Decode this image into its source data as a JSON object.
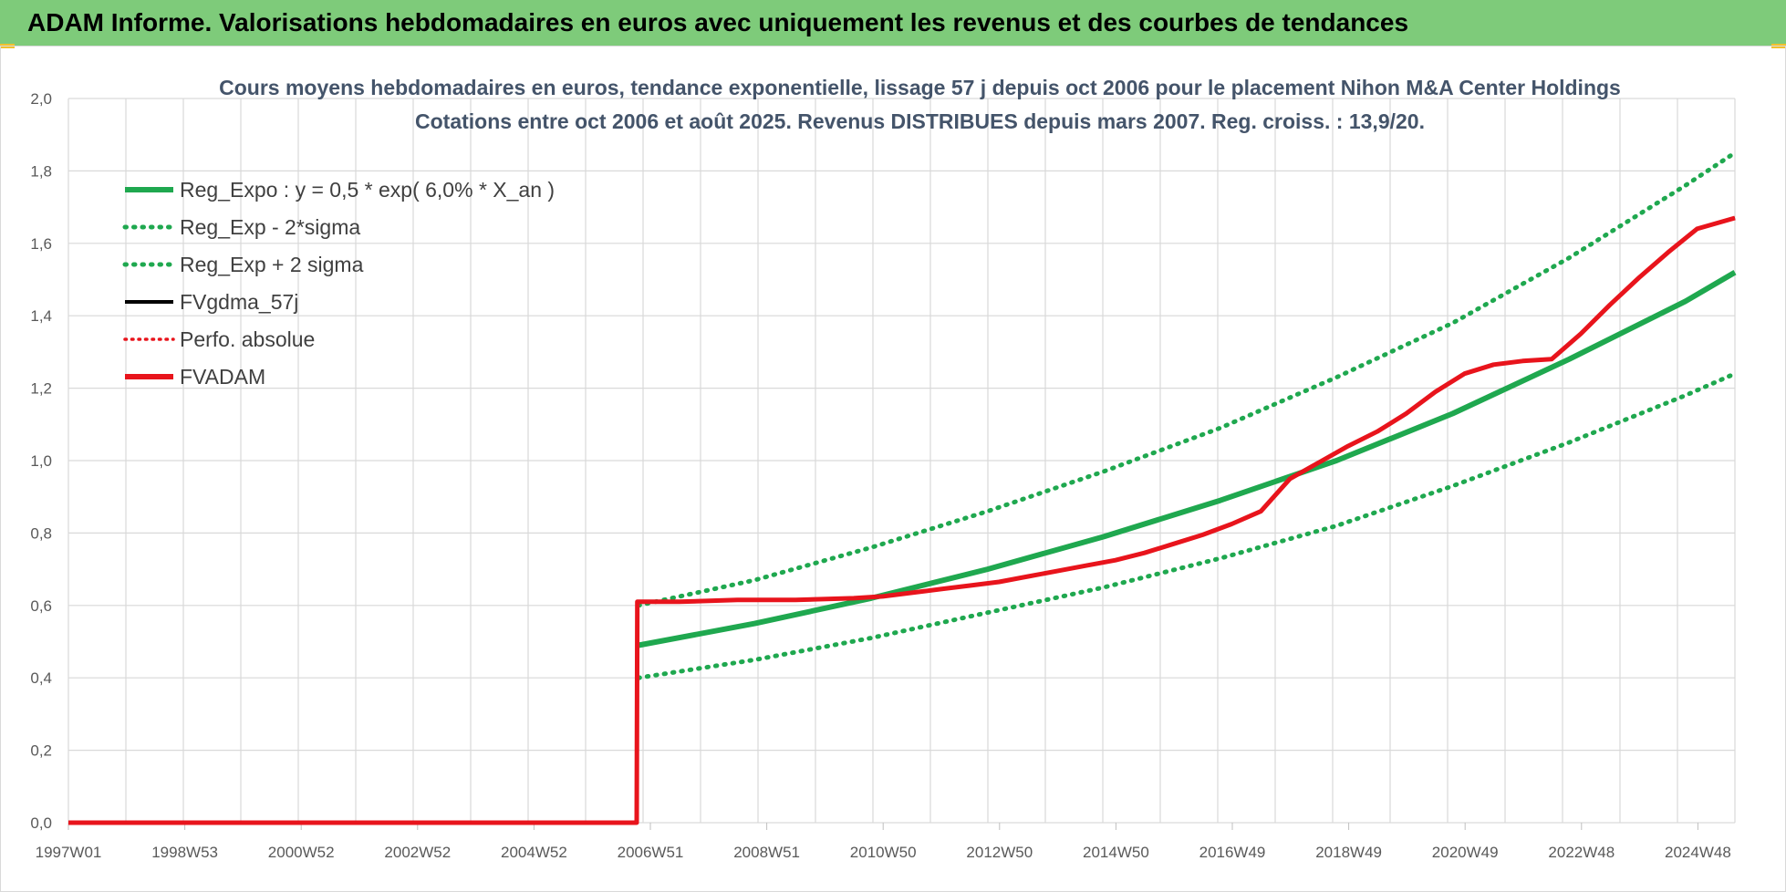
{
  "header": {
    "title": "ADAM Informe. Valorisations hebdomadaires en euros avec uniquement les revenus et des courbes de tendances"
  },
  "colors": {
    "header_bg": "#7ecb7a",
    "reg": "#1fa84f",
    "fv": "#000000",
    "adam": "#e8141c",
    "grid": "#d9d9d9"
  },
  "chart_data": {
    "type": "line",
    "title": [
      "Cours moyens hebdomadaires en euros, tendance exponentielle, lissage 57 j depuis oct 2006 pour le placement Nihon M&A Center Holdings",
      "Cotations entre oct 2006 et août 2025. Revenus DISTRIBUES depuis mars 2007. Reg. croiss. : 13,9/20."
    ],
    "x_tick_labels": [
      "1997W01",
      "1998W53",
      "2000W52",
      "2002W52",
      "2004W52",
      "2006W51",
      "2008W51",
      "2010W50",
      "2012W50",
      "2014W50",
      "2016W49",
      "2018W49",
      "2020W49",
      "2022W48",
      "2024W48"
    ],
    "x_range": [
      1997.0,
      2025.65
    ],
    "ylim": [
      0,
      2.0
    ],
    "y_tick_labels": [
      "0,0",
      "0,2",
      "0,4",
      "0,6",
      "0,8",
      "1,0",
      "1,2",
      "1,4",
      "1,6",
      "1,8",
      "2,0"
    ],
    "grid": true,
    "legend_position": "top-left",
    "legend": [
      {
        "label": "Reg_Expo : y = 0,5 * exp( 6,0% *  X_an )",
        "color": "#1fa84f",
        "style": "solid"
      },
      {
        "label": "Reg_Exp - 2*sigma",
        "color": "#1fa84f",
        "style": "dotted"
      },
      {
        "label": "Reg_Exp + 2 sigma",
        "color": "#1fa84f",
        "style": "dotted"
      },
      {
        "label": "FVgdma_57j",
        "color": "#000000",
        "style": "solid"
      },
      {
        "label": "Perfo. absolue",
        "color": "#e8141c",
        "style": "dotted"
      },
      {
        "label": "FVADAM",
        "color": "#e8141c",
        "style": "solid"
      }
    ],
    "series": [
      {
        "name": "Reg_Expo : y = 0,5 * exp( 6,0% *  X_an )",
        "x": [
          2006.8,
          2008.8,
          2010.8,
          2012.8,
          2014.8,
          2016.8,
          2018.8,
          2020.8,
          2022.8,
          2024.8,
          2025.65
        ],
        "values": [
          0.49,
          0.55,
          0.62,
          0.7,
          0.79,
          0.89,
          1.0,
          1.13,
          1.28,
          1.44,
          1.52
        ]
      },
      {
        "name": "Reg_Exp - 2*sigma",
        "x": [
          2006.8,
          2008.8,
          2010.8,
          2012.8,
          2014.8,
          2016.8,
          2018.8,
          2020.8,
          2022.8,
          2024.8,
          2025.65
        ],
        "values": [
          0.4,
          0.45,
          0.51,
          0.58,
          0.65,
          0.73,
          0.82,
          0.93,
          1.05,
          1.18,
          1.24
        ]
      },
      {
        "name": "Reg_Exp + 2 sigma",
        "x": [
          2006.8,
          2008.8,
          2010.8,
          2012.8,
          2014.8,
          2016.8,
          2018.8,
          2020.8,
          2022.8,
          2024.8,
          2025.65
        ],
        "values": [
          0.6,
          0.67,
          0.76,
          0.86,
          0.97,
          1.09,
          1.23,
          1.38,
          1.56,
          1.76,
          1.85
        ]
      },
      {
        "name": "FVgdma_57j",
        "x": [
          1997.0,
          2006.77,
          2006.78,
          2007.5,
          2008.5,
          2009.5,
          2010.5,
          2011.0,
          2011.5,
          2012.0,
          2012.5,
          2013.0,
          2013.5,
          2014.0,
          2014.5,
          2015.0,
          2015.5,
          2016.0,
          2016.5,
          2017.0,
          2017.5,
          2018.0,
          2018.5,
          2019.0,
          2019.5,
          2020.0,
          2020.5,
          2021.0,
          2021.5,
          2022.0,
          2022.5,
          2023.0,
          2023.5,
          2024.0,
          2024.5,
          2025.0,
          2025.65
        ],
        "values": [
          0.0,
          0.0,
          0.61,
          0.61,
          0.615,
          0.615,
          0.62,
          0.625,
          0.635,
          0.645,
          0.655,
          0.665,
          0.68,
          0.695,
          0.71,
          0.725,
          0.745,
          0.77,
          0.795,
          0.825,
          0.86,
          0.95,
          0.995,
          1.04,
          1.08,
          1.13,
          1.19,
          1.24,
          1.265,
          1.275,
          1.28,
          1.35,
          1.43,
          1.505,
          1.575,
          1.64,
          1.67
        ]
      },
      {
        "name": "FVADAM",
        "x": [
          1997.0,
          2006.77,
          2006.78,
          2007.5,
          2008.5,
          2009.5,
          2010.5,
          2011.0,
          2011.5,
          2012.0,
          2012.5,
          2013.0,
          2013.5,
          2014.0,
          2014.5,
          2015.0,
          2015.5,
          2016.0,
          2016.5,
          2017.0,
          2017.5,
          2018.0,
          2018.5,
          2019.0,
          2019.5,
          2020.0,
          2020.5,
          2021.0,
          2021.5,
          2022.0,
          2022.5,
          2023.0,
          2023.5,
          2024.0,
          2024.5,
          2025.0,
          2025.65
        ],
        "values": [
          0.0,
          0.0,
          0.61,
          0.61,
          0.615,
          0.615,
          0.62,
          0.625,
          0.635,
          0.645,
          0.655,
          0.665,
          0.68,
          0.695,
          0.71,
          0.725,
          0.745,
          0.77,
          0.795,
          0.825,
          0.86,
          0.95,
          0.995,
          1.04,
          1.08,
          1.13,
          1.19,
          1.24,
          1.265,
          1.275,
          1.28,
          1.35,
          1.43,
          1.505,
          1.575,
          1.64,
          1.67
        ]
      }
    ]
  }
}
